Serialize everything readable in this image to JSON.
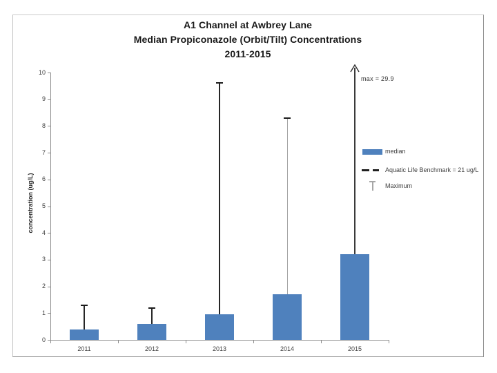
{
  "chart_data": {
    "type": "bar",
    "title_lines": [
      "A1 Channel at Awbrey Lane",
      "Median Propiconazole (Orbit/Tilt) Concentrations",
      "2011-2015"
    ],
    "categories": [
      "2011",
      "2012",
      "2013",
      "2014",
      "2015"
    ],
    "series": [
      {
        "name": "median",
        "type": "bar",
        "values": [
          0.4,
          0.6,
          0.95,
          1.7,
          3.2
        ]
      },
      {
        "name": "Maximum",
        "type": "errorbar-max",
        "values": [
          1.3,
          1.2,
          9.6,
          8.3,
          29.9
        ],
        "line_colors": [
          "#262626",
          "#262626",
          "#262626",
          "#a6a6a6",
          "#3a3a3a"
        ],
        "line_widths": [
          2,
          2,
          2,
          1,
          2
        ]
      }
    ],
    "ylabel": "concentration (ug/L)",
    "xlabel": "",
    "ylim": [
      0,
      10
    ],
    "yticks": [
      0,
      1,
      2,
      3,
      4,
      5,
      6,
      7,
      8,
      9,
      10
    ],
    "grid": false,
    "legend_position": "right",
    "legend": {
      "items": [
        {
          "symbol": "bar-swatch",
          "label": "median"
        },
        {
          "symbol": "dashed-line",
          "label": "Aquatic Life Benchmark = 21 ug/L"
        },
        {
          "symbol": "error-bar-t",
          "label": "Maximum"
        }
      ]
    },
    "benchmark": {
      "label": "Aquatic Life Benchmark = 21 ug/L",
      "value": 21,
      "visible_in_plot": false
    },
    "annotations": [
      {
        "text": "max = 29.9",
        "target_category": "2015",
        "style": "up-arrow-off-scale"
      }
    ],
    "colors": {
      "bar": "#4f81bd",
      "axis": "#8c8c8c",
      "error_cap": "#1a1a1a",
      "tick_text": "#404040",
      "title_text": "#1a1a1a",
      "legend_dash": "#1f1f1f",
      "legend_t": "#a6a6a6",
      "arrow": "#2e2e2e"
    }
  }
}
